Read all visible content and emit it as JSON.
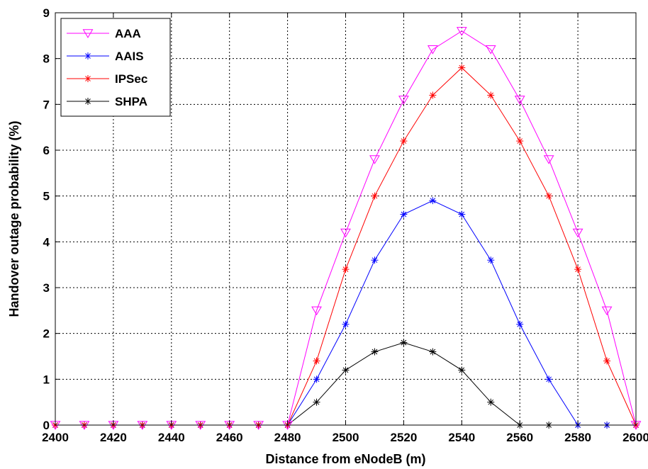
{
  "chart_data": {
    "type": "line",
    "xlabel": "Distance from eNodeB (m)",
    "ylabel": "Handover outage probability (%)",
    "xlim": [
      2400,
      2600
    ],
    "ylim": [
      0,
      9
    ],
    "xticks": [
      2400,
      2420,
      2440,
      2460,
      2480,
      2500,
      2520,
      2540,
      2560,
      2580,
      2600
    ],
    "yticks": [
      0,
      1,
      2,
      3,
      4,
      5,
      6,
      7,
      8,
      9
    ],
    "grid": true,
    "legend_position": "top-left",
    "x": [
      2400,
      2410,
      2420,
      2430,
      2440,
      2450,
      2460,
      2470,
      2480,
      2490,
      2500,
      2510,
      2520,
      2530,
      2540,
      2550,
      2560,
      2570,
      2580,
      2590,
      2600
    ],
    "series": [
      {
        "name": "AAA",
        "color": "#ff00ff",
        "marker": "triangle-down",
        "values": [
          0,
          0,
          0,
          0,
          0,
          0,
          0,
          0,
          0,
          2.5,
          4.2,
          5.8,
          7.1,
          8.2,
          8.6,
          8.2,
          7.1,
          5.8,
          4.2,
          2.5,
          0
        ]
      },
      {
        "name": "AAIS",
        "color": "#0000ff",
        "marker": "asterisk",
        "values": [
          0,
          0,
          0,
          0,
          0,
          0,
          0,
          0,
          0,
          1.0,
          2.2,
          3.6,
          4.6,
          4.9,
          4.6,
          3.6,
          2.2,
          1.0,
          0,
          0,
          0
        ]
      },
      {
        "name": "IPSec",
        "color": "#ff0000",
        "marker": "asterisk",
        "values": [
          0,
          0,
          0,
          0,
          0,
          0,
          0,
          0,
          0,
          1.4,
          3.4,
          5.0,
          6.2,
          7.2,
          7.8,
          7.2,
          6.2,
          5.0,
          3.4,
          1.4,
          0
        ]
      },
      {
        "name": "SHPA",
        "color": "#000000",
        "marker": "asterisk",
        "values": [
          0,
          0,
          0,
          0,
          0,
          0,
          0,
          0,
          0,
          0.5,
          1.2,
          1.6,
          1.8,
          1.6,
          1.2,
          0.5,
          0,
          0,
          0,
          0,
          0
        ]
      }
    ]
  }
}
